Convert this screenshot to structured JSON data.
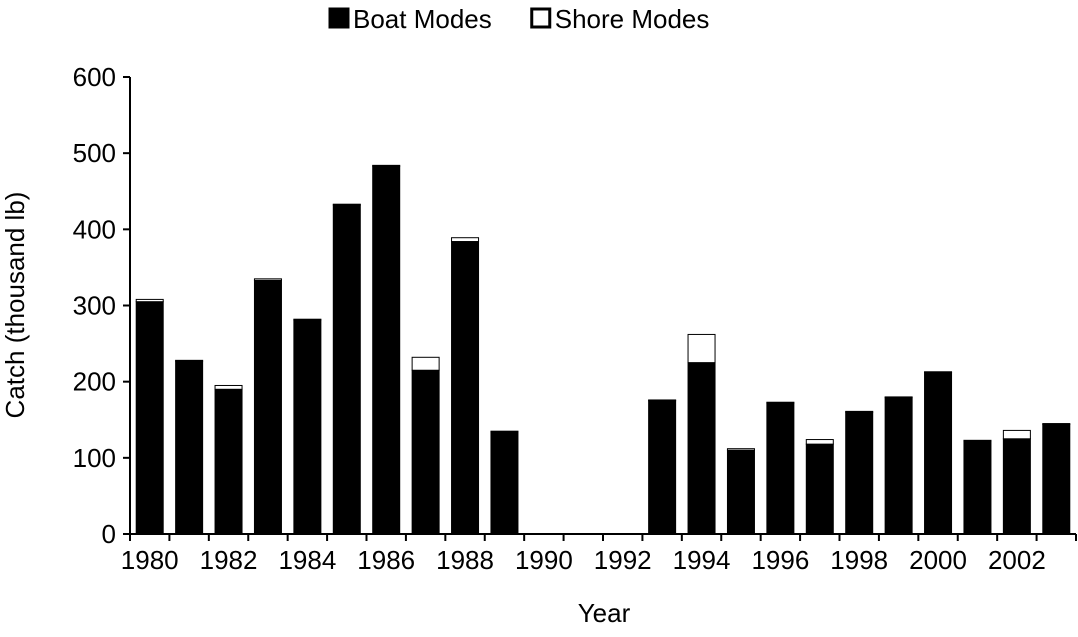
{
  "chart_data": {
    "type": "stacked_bar",
    "x_label": "Year",
    "y_label": "Catch (thousand lb)",
    "categories": [
      "1980",
      null,
      "1982",
      null,
      "1984",
      null,
      "1986",
      null,
      "1988",
      null,
      "1990",
      null,
      "1992",
      null,
      "1994",
      null,
      "1996",
      null,
      "1998",
      null,
      "2000",
      null,
      "2002",
      null
    ],
    "series": [
      {
        "name": "Boat Modes",
        "color": "#000000",
        "values": [
          305,
          227,
          190,
          333,
          281,
          432,
          483,
          215,
          384,
          134,
          0,
          0,
          0,
          175,
          225,
          110,
          172,
          118,
          160,
          179,
          212,
          122,
          125,
          144
        ]
      },
      {
        "name": "Shore Modes",
        "color": "#ffffff",
        "values": [
          3,
          1,
          5,
          2,
          1,
          1,
          1,
          17,
          5,
          1,
          0,
          0,
          0,
          1,
          37,
          2,
          1,
          6,
          1,
          1,
          1,
          1,
          11,
          1
        ]
      }
    ],
    "ylim": [
      0,
      600
    ],
    "yticks": [
      0,
      100,
      200,
      300,
      400,
      500,
      600
    ],
    "grid": false,
    "legend": "top"
  }
}
